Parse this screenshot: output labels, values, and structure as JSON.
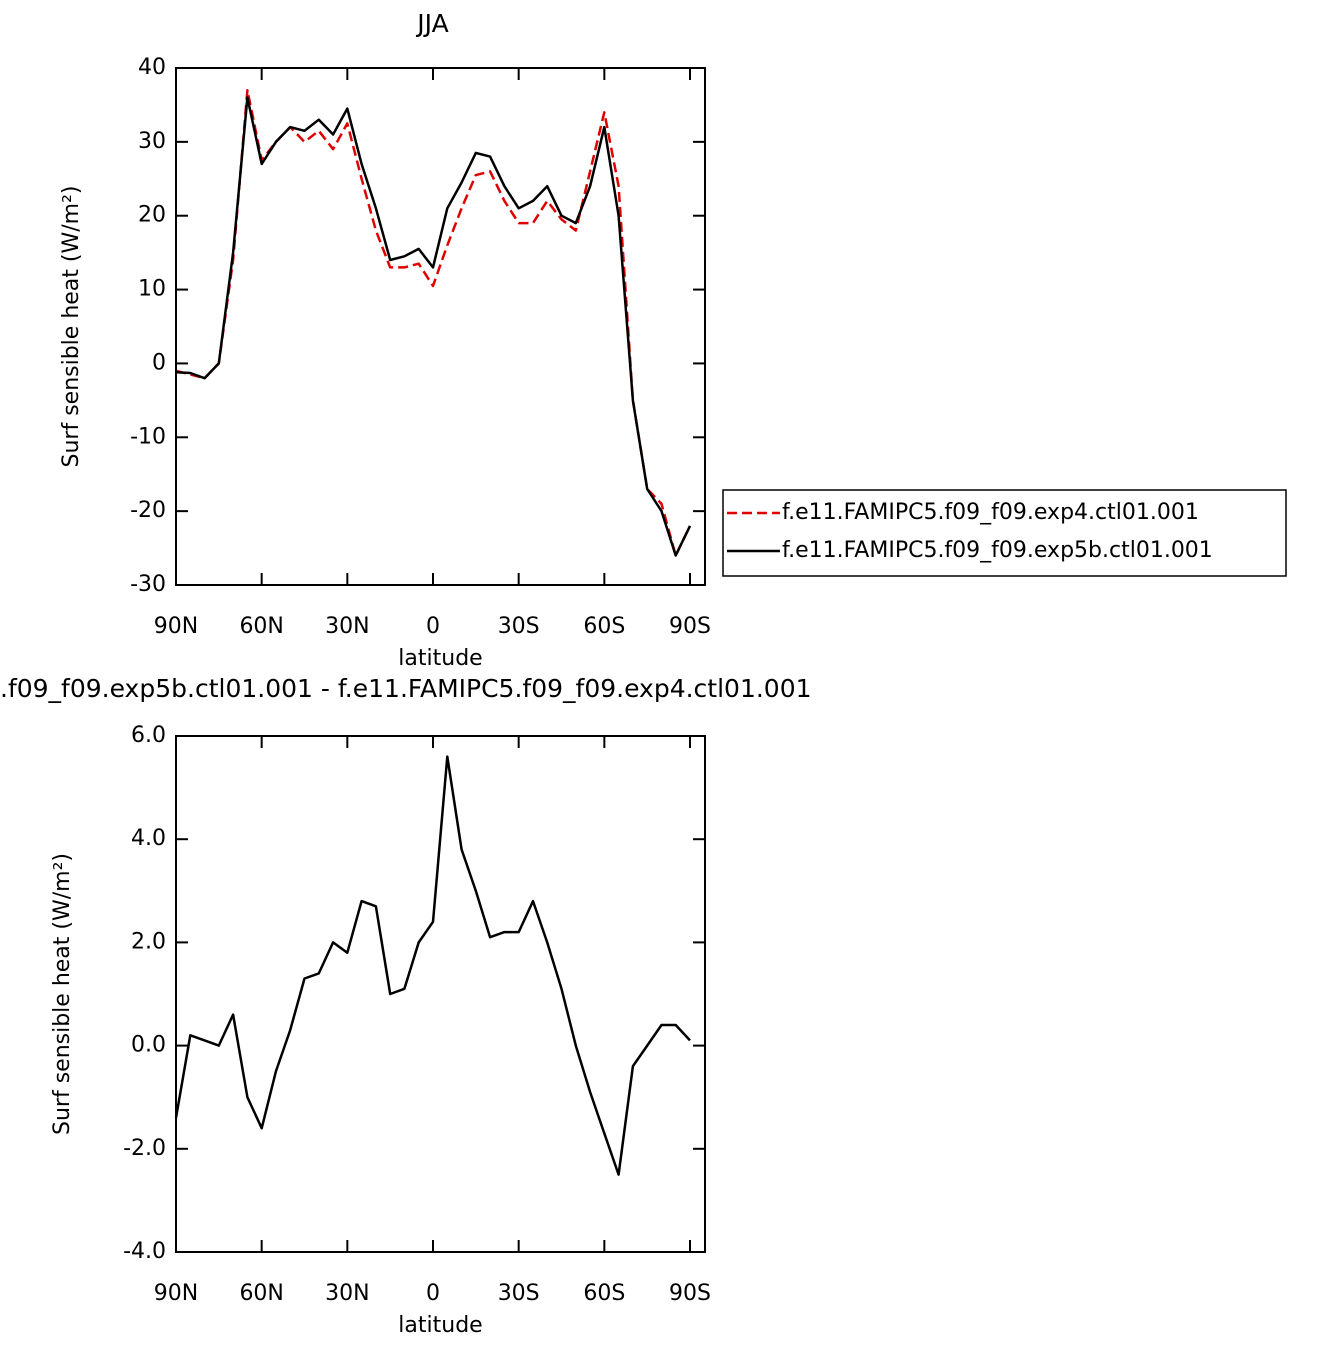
{
  "chart_data": [
    {
      "type": "line",
      "title": "JJA",
      "xlabel": "latitude",
      "ylabel": "Surf sensible heat (W/m²)",
      "x": [
        90,
        85,
        80,
        75,
        70,
        65,
        60,
        55,
        50,
        45,
        40,
        35,
        30,
        25,
        20,
        15,
        10,
        5,
        0,
        -5,
        -10,
        -15,
        -20,
        -25,
        -30,
        -35,
        -40,
        -45,
        -50,
        -55,
        -60,
        -65,
        -70,
        -75,
        -80,
        -85,
        -90
      ],
      "series": [
        {
          "name": "f.e11.FAMIPC5.f09_f09.exp4.ctl01.001",
          "color": "#e00000",
          "dash": true,
          "values": [
            -1,
            -1.5,
            -2,
            0,
            14,
            37,
            27.5,
            30,
            32,
            30,
            31.5,
            29,
            32.5,
            25,
            18,
            13,
            13,
            13.5,
            10.5,
            16,
            21,
            25.5,
            26,
            22,
            19,
            19,
            22,
            19.5,
            18,
            26,
            34,
            24,
            -5,
            -17,
            -19,
            -26,
            -22
          ]
        },
        {
          "name": "f.e11.FAMIPC5.f09_f09.exp5b.ctl01.001",
          "color": "#000000",
          "dash": false,
          "values": [
            -1.2,
            -1.3,
            -2,
            0,
            15,
            36,
            27,
            30,
            32,
            31.5,
            33,
            31,
            34.5,
            27,
            21,
            14,
            14.5,
            15.5,
            13,
            21,
            24.5,
            28.5,
            28,
            24,
            21,
            22,
            24,
            20,
            19,
            24,
            32,
            20,
            -5,
            -17,
            -20,
            -26,
            -22
          ]
        }
      ],
      "xlim": [
        90,
        -95.25
      ],
      "ylim": [
        -30,
        40
      ],
      "xticks": [
        {
          "value": 90,
          "label": "90N"
        },
        {
          "value": 60,
          "label": "60N"
        },
        {
          "value": 30,
          "label": "30N"
        },
        0,
        {
          "value": -30,
          "label": "30S"
        },
        {
          "value": -60,
          "label": "60S"
        },
        {
          "value": -90,
          "label": "90S"
        }
      ],
      "yticks": [
        -30,
        -20,
        -10,
        0,
        10,
        20,
        30,
        40
      ],
      "legend": "right"
    },
    {
      "type": "line",
      "title": ".f09_f09.exp5b.ctl01.001 - f.e11.FAMIPC5.f09_f09.exp4.ctl01.001",
      "xlabel": "latitude",
      "ylabel": "Surf sensible heat (W/m²)",
      "x": [
        90,
        85,
        80,
        75,
        70,
        65,
        60,
        55,
        50,
        45,
        40,
        35,
        30,
        25,
        20,
        15,
        10,
        5,
        0,
        -5,
        -10,
        -15,
        -20,
        -25,
        -30,
        -35,
        -40,
        -45,
        -50,
        -55,
        -60,
        -65,
        -70,
        -75,
        -80,
        -85,
        -90
      ],
      "series": [
        {
          "color": "#000000",
          "dash": false,
          "values": [
            -1.4,
            0.2,
            0.1,
            0.0,
            0.6,
            -1.0,
            -1.6,
            -0.5,
            0.3,
            1.3,
            1.4,
            2.0,
            1.8,
            2.8,
            2.7,
            1.0,
            1.1,
            2.0,
            2.4,
            5.6,
            3.8,
            3.0,
            2.1,
            2.2,
            2.2,
            2.8,
            2.0,
            1.1,
            0.0,
            -0.9,
            -1.7,
            -2.5,
            -0.4,
            0.0,
            0.4,
            0.4,
            0.1
          ]
        }
      ],
      "xlim": [
        90,
        -95.25
      ],
      "ylim": [
        -4,
        6
      ],
      "xticks": [
        {
          "value": 90,
          "label": "90N"
        },
        {
          "value": 60,
          "label": "60N"
        },
        {
          "value": 30,
          "label": "30N"
        },
        0,
        {
          "value": -30,
          "label": "30S"
        },
        {
          "value": -60,
          "label": "60S"
        },
        {
          "value": -90,
          "label": "90S"
        }
      ],
      "yticks": [
        {
          "value": -4,
          "label": "-4.0"
        },
        {
          "value": -2,
          "label": "-2.0"
        },
        {
          "value": 0,
          "label": "0.0"
        },
        {
          "value": 2,
          "label": "2.0"
        },
        {
          "value": 4,
          "label": "4.0"
        },
        {
          "value": 6,
          "label": "6.0"
        }
      ]
    }
  ]
}
